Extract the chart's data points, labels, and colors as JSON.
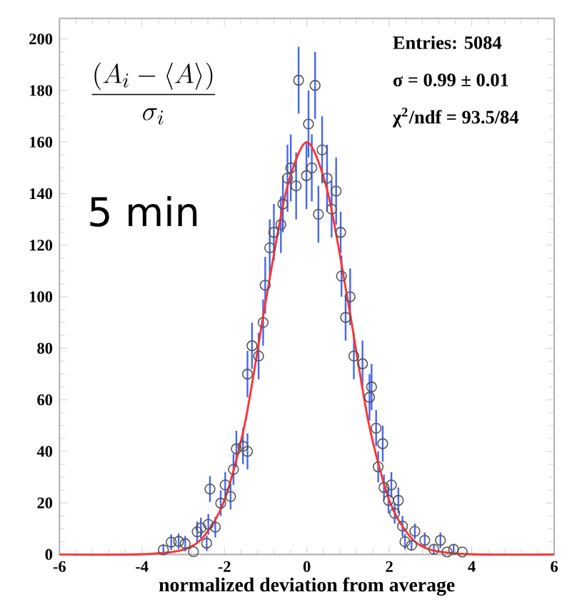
{
  "chart_data": {
    "type": "scatter",
    "xlabel": "normalized deviation from average",
    "annotations": [
      "\\frac{(A_i - \\langle A \\rangle)}{\\sigma_i}",
      "5 min",
      "Entries: 5084",
      "σ = 0.99  ± 0.01",
      "χ$^{2}$/ndf = 93.5/84"
    ],
    "xlim": [
      -6,
      6
    ],
    "ylim": [
      0,
      208
    ],
    "xticks": [
      -6,
      -4,
      -2,
      0,
      2,
      4,
      6
    ],
    "yticks": [
      0,
      20,
      40,
      60,
      80,
      100,
      120,
      140,
      160,
      180,
      200
    ],
    "marker": "circle",
    "series": [
      {
        "color": "#555555",
        "x": [
          -3.48,
          -3.29,
          -3.11,
          -2.95,
          -2.75,
          -2.66,
          -2.57,
          -2.43,
          -2.39,
          -2.35,
          -2.22,
          -2.09,
          -1.98,
          -1.85,
          -1.78,
          -1.71,
          -1.55,
          -1.44,
          -1.44,
          -1.33,
          -1.17,
          -1.06,
          -1.01,
          -0.9,
          -0.8,
          -0.63,
          -0.58,
          -0.47,
          -0.39,
          -0.26,
          -0.2,
          -0.01,
          0.04,
          0.12,
          0.2,
          0.28,
          0.37,
          0.49,
          0.6,
          0.71,
          0.82,
          0.84,
          0.94,
          1.05,
          1.14,
          1.35,
          1.52,
          1.57,
          1.68,
          1.73,
          1.84,
          1.87,
          1.98,
          2.05,
          2.13,
          2.22,
          2.32,
          2.38,
          2.54,
          2.62,
          2.86,
          3.08,
          3.24,
          3.4,
          3.56,
          3.77
        ],
        "values": [
          1.8,
          4.8,
          5.1,
          4.2,
          1.1,
          8.8,
          10.3,
          4.4,
          11.7,
          25.4,
          10.6,
          19.9,
          27,
          22.5,
          33,
          41,
          42,
          40,
          70,
          81,
          77,
          90,
          104.5,
          119,
          125,
          128,
          136,
          146,
          150,
          143,
          184,
          147,
          167,
          150,
          182,
          132,
          157,
          146,
          134,
          141,
          125,
          108,
          92,
          100,
          77,
          74,
          61,
          65,
          49,
          34,
          43,
          26,
          21,
          27,
          16,
          21,
          11,
          5,
          3.6,
          9,
          5.5,
          2,
          5.5,
          1,
          2,
          1
        ],
        "errors": [
          2,
          3,
          3,
          3,
          null,
          4,
          4,
          3,
          4,
          5,
          4,
          5,
          5,
          5,
          6,
          7,
          7,
          7,
          9,
          9,
          9,
          9,
          11,
          11,
          11,
          11,
          11,
          13,
          13,
          13,
          13,
          13,
          13,
          13,
          13,
          11,
          13,
          13,
          11,
          13,
          8,
          8,
          9,
          11,
          9,
          9,
          9,
          9,
          7,
          6,
          7,
          5,
          5,
          5,
          4,
          5,
          4,
          3,
          2,
          3,
          3,
          2,
          3,
          null,
          2,
          null
        ]
      },
      {
        "type": "line",
        "color": "#ff3333",
        "marker": "none",
        "x": [
          -6,
          -4,
          -3,
          -2.5,
          -2,
          -1.5,
          -1,
          -0.5,
          0,
          0.5,
          1,
          1.5,
          2,
          2.5,
          3,
          4,
          6
        ],
        "values": [
          0,
          0.1,
          1.8,
          7,
          21,
          51,
          98,
          141,
          160,
          141,
          98,
          51,
          21,
          7,
          1.8,
          0.1,
          0
        ]
      }
    ]
  }
}
